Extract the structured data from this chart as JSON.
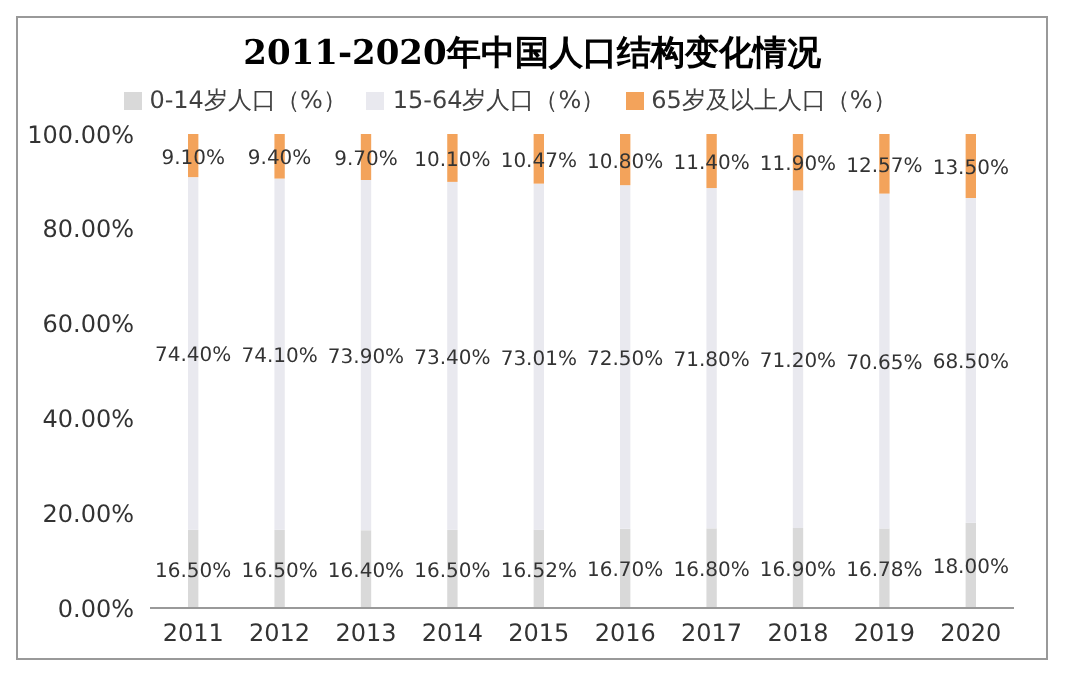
{
  "chart_data": {
    "type": "bar",
    "title": "2011-2020年中国人口结构变化情况",
    "stacked": true,
    "categories": [
      "2011",
      "2012",
      "2013",
      "2014",
      "2015",
      "2016",
      "2017",
      "2018",
      "2019",
      "2020"
    ],
    "series": [
      {
        "name": "0-14岁人口（%）",
        "color": "#d9d9d9",
        "values": [
          16.5,
          16.5,
          16.4,
          16.5,
          16.52,
          16.7,
          16.8,
          16.9,
          16.78,
          18.0
        ],
        "value_labels": [
          "16.50%",
          "16.50%",
          "16.40%",
          "16.50%",
          "16.52%",
          "16.70%",
          "16.80%",
          "16.90%",
          "16.78%",
          "18.00%"
        ]
      },
      {
        "name": "15-64岁人口（%）",
        "color": "#e9e9ef",
        "values": [
          74.4,
          74.1,
          73.9,
          73.4,
          73.01,
          72.5,
          71.8,
          71.2,
          70.65,
          68.5
        ],
        "value_labels": [
          "74.40%",
          "74.10%",
          "73.90%",
          "73.40%",
          "73.01%",
          "72.50%",
          "71.80%",
          "71.20%",
          "70.65%",
          "68.50%"
        ]
      },
      {
        "name": "65岁及以上人口（%）",
        "color": "#f3a35b",
        "values": [
          9.1,
          9.4,
          9.7,
          10.1,
          10.47,
          10.8,
          11.4,
          11.9,
          12.57,
          13.5
        ],
        "value_labels": [
          "9.10%",
          "9.40%",
          "9.70%",
          "10.10%",
          "10.47%",
          "10.80%",
          "11.40%",
          "11.90%",
          "12.57%",
          "13.50%"
        ]
      }
    ],
    "ylim": [
      0,
      100
    ],
    "yticks": [
      {
        "value": 0,
        "label": "0.00%"
      },
      {
        "value": 20,
        "label": "20.00%"
      },
      {
        "value": 40,
        "label": "40.00%"
      },
      {
        "value": 60,
        "label": "60.00%"
      },
      {
        "value": 80,
        "label": "80.00%"
      },
      {
        "value": 100,
        "label": "100.00%"
      }
    ],
    "legend": "top",
    "grid": false
  }
}
